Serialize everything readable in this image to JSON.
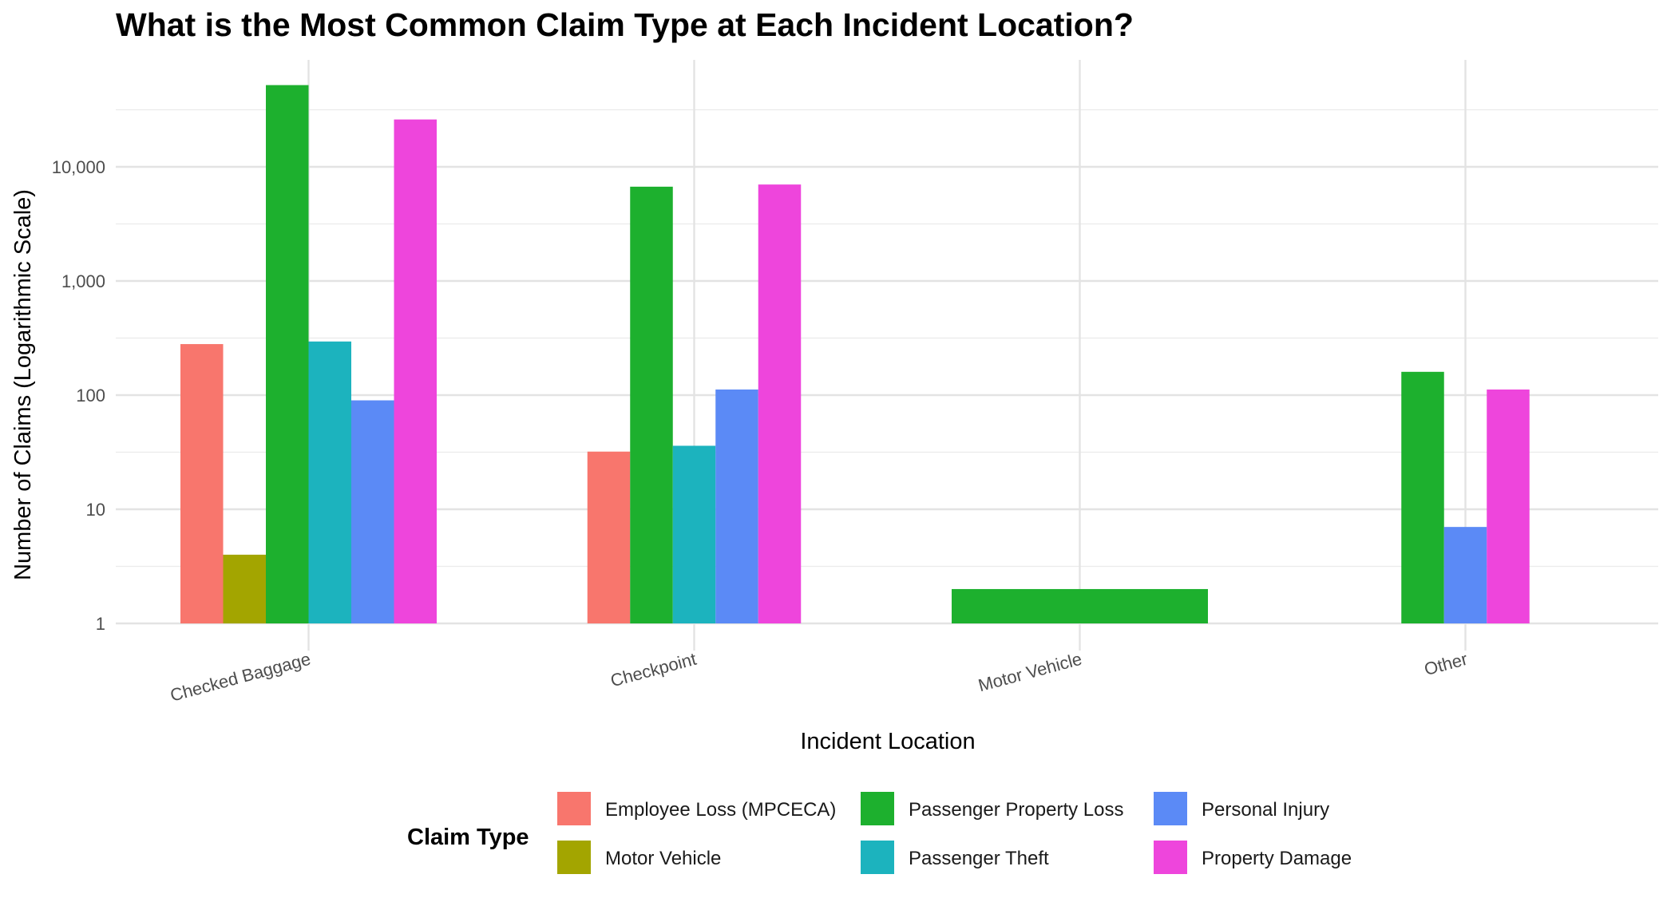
{
  "chart_data": {
    "type": "bar",
    "title": "What is the Most Common Claim Type at Each Incident Location?",
    "xlabel": "Incident Location",
    "ylabel": "Number of Claims (Logarithmic Scale)",
    "y_scale": "log10",
    "ylim": [
      1,
      60000
    ],
    "y_ticks": [
      "1",
      "10",
      "100",
      "1,000",
      "10,000"
    ],
    "grid": true,
    "categories": [
      "Checked Baggage",
      "Checkpoint",
      "Motor Vehicle",
      "Other"
    ],
    "legend_title": "Claim Type",
    "legend_position": "bottom",
    "series": [
      {
        "name": "Employee Loss (MPCECA)",
        "color": "#F8766D",
        "values": [
          280,
          32,
          null,
          null
        ]
      },
      {
        "name": "Motor Vehicle",
        "color": "#A3A500",
        "values": [
          4,
          null,
          null,
          null
        ]
      },
      {
        "name": "Passenger Property Loss",
        "color": "#1DB02E",
        "values": [
          52000,
          6700,
          2,
          160
        ]
      },
      {
        "name": "Passenger Theft",
        "color": "#1CB3BE",
        "values": [
          295,
          36,
          null,
          null
        ]
      },
      {
        "name": "Personal Injury",
        "color": "#5B8AF6",
        "values": [
          90,
          112,
          null,
          7
        ]
      },
      {
        "name": "Property Damage",
        "color": "#EE45DC",
        "values": [
          26000,
          7000,
          null,
          112
        ]
      }
    ]
  }
}
